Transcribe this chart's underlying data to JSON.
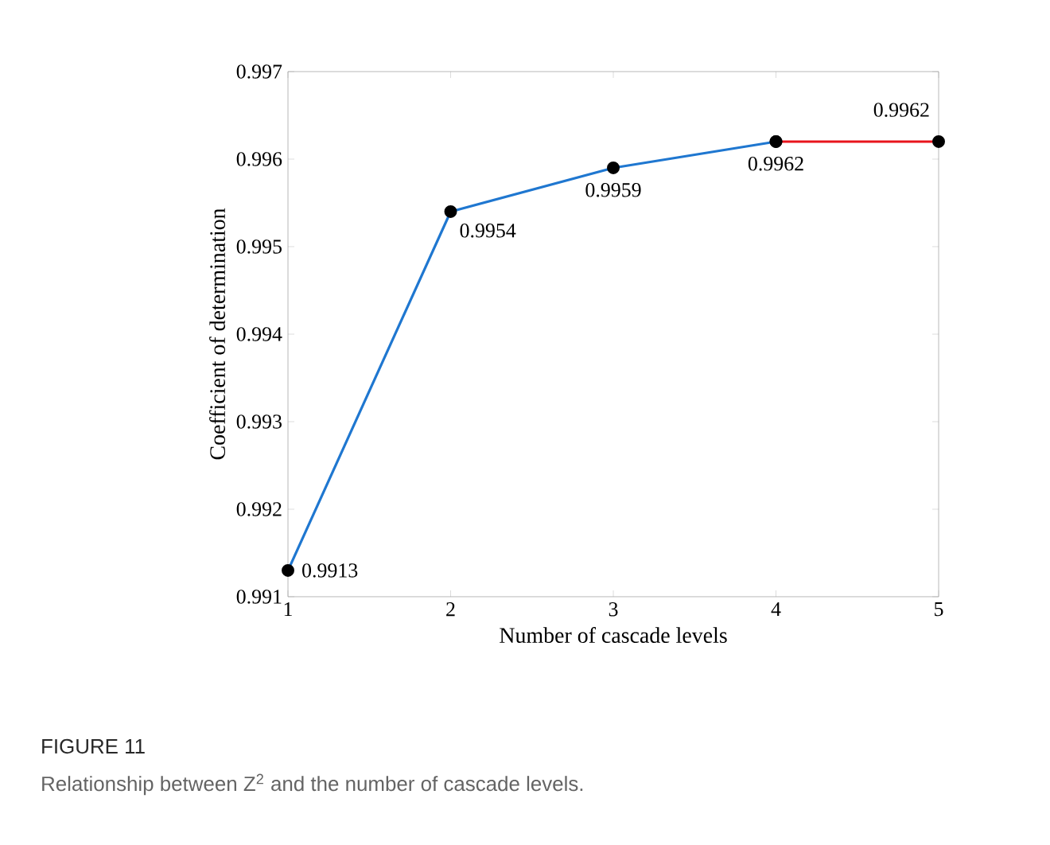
{
  "chart_data": {
    "type": "line",
    "xlabel": "Number of cascade levels",
    "ylabel": "Coefficient of determination",
    "xlim": [
      1,
      5
    ],
    "xticks": [
      1,
      2,
      3,
      4,
      5
    ],
    "ylim": [
      0.991,
      0.997
    ],
    "yticks": [
      0.991,
      0.992,
      0.993,
      0.994,
      0.995,
      0.996,
      0.997
    ],
    "marker": "circle",
    "line_style": "solid",
    "series": [
      {
        "color": "#1f77d0",
        "x": [
          1,
          2,
          3,
          4
        ],
        "values": [
          0.9913,
          0.9954,
          0.9959,
          0.9962
        ],
        "value_labels": [
          "0.9913",
          "0.9954",
          "0.9959",
          "0.9962"
        ]
      },
      {
        "color": "#e8141c",
        "x": [
          4,
          5
        ],
        "values": [
          0.9962,
          0.9962
        ],
        "value_labels": [
          null,
          "0.9962"
        ]
      }
    ],
    "annotations": [
      "FIGURE 11",
      "Relationship between Z$^{2}$ and the number of cascade levels."
    ]
  }
}
